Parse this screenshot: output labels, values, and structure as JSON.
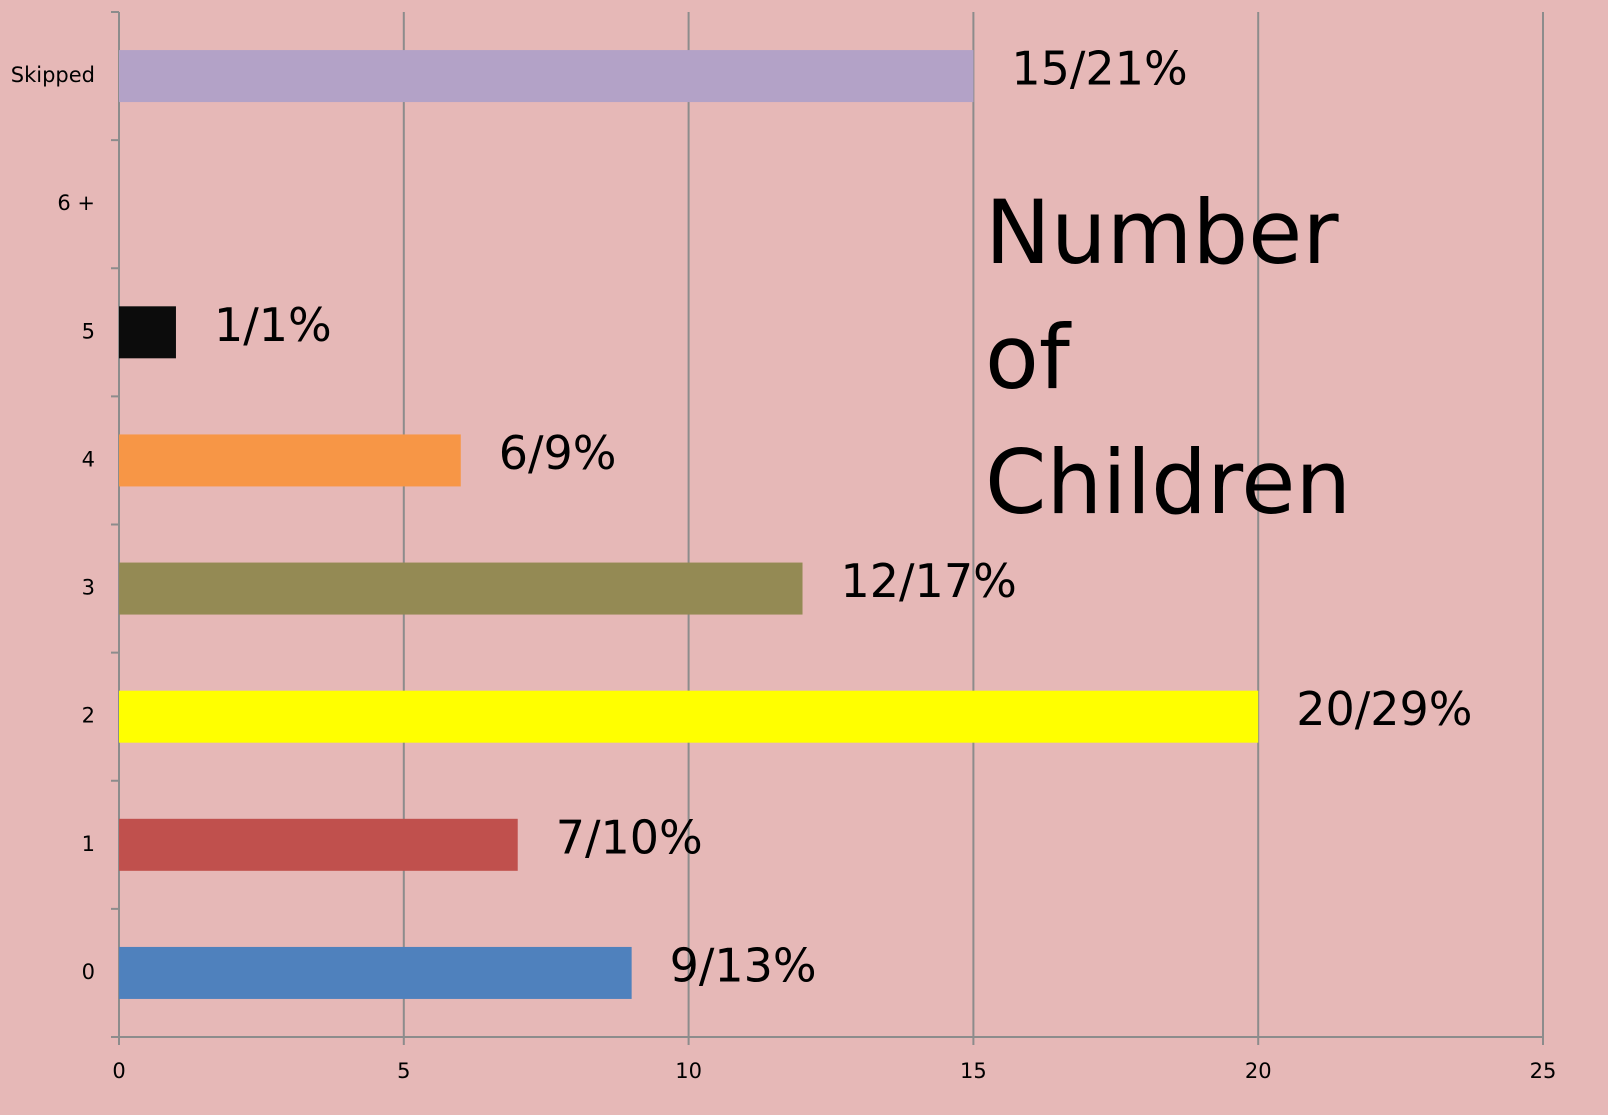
{
  "chart_data": {
    "type": "barh",
    "title": "Number of Children",
    "categories": [
      "0",
      "1",
      "2",
      "3",
      "4",
      "5",
      "6 +",
      "Skipped"
    ],
    "values": [
      9,
      7,
      20,
      12,
      6,
      1,
      null,
      15
    ],
    "value_labels": [
      "9/13%",
      "7/10%",
      "20/29%",
      "12/17%",
      "6/9%",
      "1/1%",
      null,
      "15/21%"
    ],
    "colors": [
      "#4f81bd",
      "#c0504d",
      "#ffff00",
      "#948a54",
      "#f79646",
      "#0c0c0c",
      null,
      "#b3a2c7"
    ],
    "xlim": [
      0,
      25
    ],
    "xticks": [
      0,
      5,
      10,
      15,
      20,
      25
    ],
    "grid": true
  }
}
